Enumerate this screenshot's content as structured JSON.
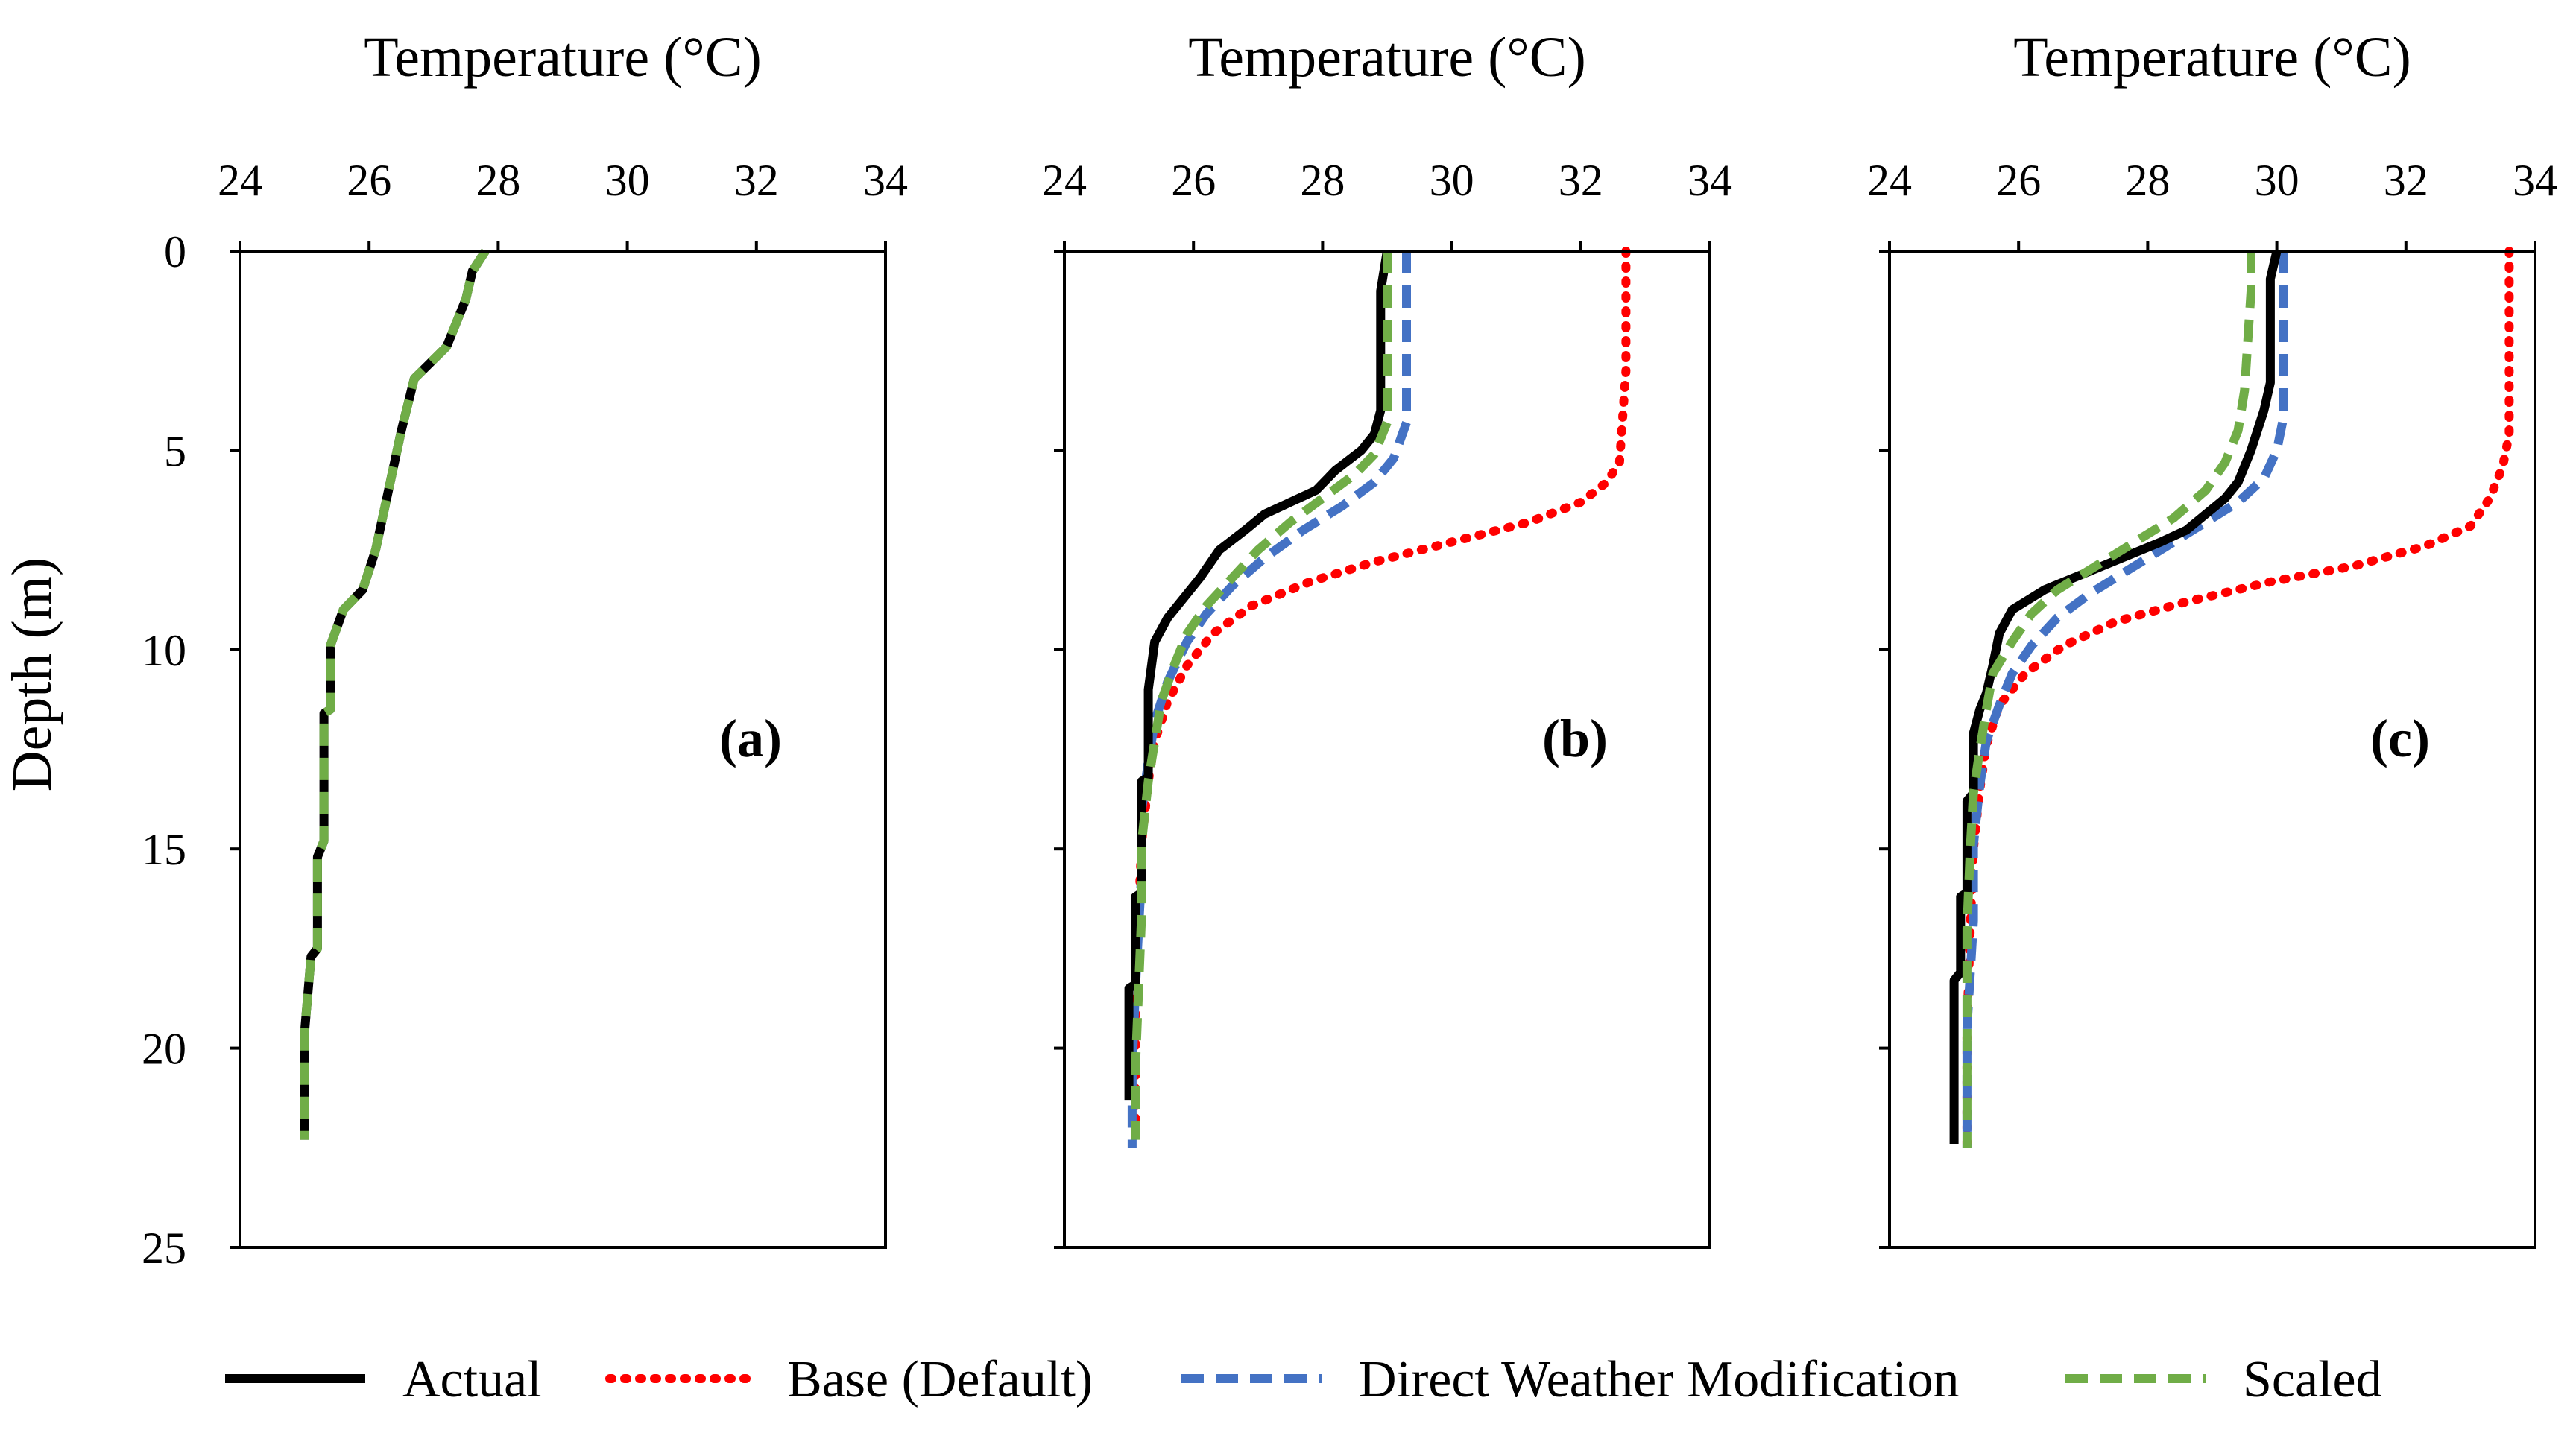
{
  "chart_data": [
    {
      "type": "line",
      "panel_label": "(a)",
      "xlabel": "Temperature (°C)",
      "ylabel": "Depth (m)",
      "xlim": [
        24,
        34
      ],
      "ylim": [
        0,
        25
      ],
      "xticks": [
        "24",
        "26",
        "28",
        "30",
        "32",
        "34"
      ],
      "yticks": [
        "0",
        "5",
        "10",
        "15",
        "20",
        "25"
      ],
      "series": [
        {
          "name": "Actual",
          "x": [
            27.8,
            27.6,
            27.5,
            27.2,
            26.7,
            26.5,
            26.3,
            26.1,
            25.9,
            25.6,
            25.4,
            25.4,
            25.3,
            25.3,
            25.2,
            25.2,
            25.1,
            25.0,
            25.0
          ],
          "y": [
            0,
            0.5,
            1.2,
            2.4,
            3.2,
            4.5,
            6,
            7.5,
            8.5,
            9,
            9.9,
            11.5,
            11.6,
            14.8,
            15.2,
            17.5,
            17.7,
            19.6,
            22.3
          ]
        },
        {
          "name": "Scaled",
          "x": [
            27.8,
            27.6,
            27.5,
            27.2,
            26.7,
            26.5,
            26.3,
            26.1,
            25.9,
            25.6,
            25.4,
            25.4,
            25.3,
            25.3,
            25.2,
            25.2,
            25.1,
            25.0,
            25.0
          ],
          "y": [
            0,
            0.5,
            1.2,
            2.4,
            3.2,
            4.5,
            6,
            7.5,
            8.5,
            9,
            9.9,
            11.5,
            11.6,
            14.8,
            15.2,
            17.5,
            17.7,
            19.6,
            22.3
          ]
        }
      ]
    },
    {
      "type": "line",
      "panel_label": "(b)",
      "xlabel": "Temperature (°C)",
      "ylabel": "",
      "xlim": [
        24,
        34
      ],
      "ylim": [
        0,
        25
      ],
      "xticks": [
        "24",
        "26",
        "28",
        "30",
        "32",
        "34"
      ],
      "yticks": [
        "0",
        "5",
        "10",
        "15",
        "20",
        "25"
      ],
      "series": [
        {
          "name": "Actual",
          "x": [
            29.0,
            28.9,
            28.9,
            28.8,
            28.6,
            28.2,
            27.9,
            27.5,
            27.1,
            26.8,
            26.4,
            26.1,
            25.8,
            25.6,
            25.4,
            25.3,
            25.3,
            25.2,
            25.2,
            25.1,
            25.1,
            25.0,
            25.0
          ],
          "y": [
            0,
            1,
            4,
            4.6,
            5,
            5.5,
            6,
            6.3,
            6.6,
            7,
            7.5,
            8.2,
            8.8,
            9.2,
            9.8,
            11,
            13.2,
            13.3,
            16.1,
            16.2,
            18.4,
            18.5,
            21.3
          ]
        },
        {
          "name": "Base (Default)",
          "x": [
            32.7,
            32.7,
            32.6,
            32.4,
            32.0,
            31.2,
            30.0,
            28.8,
            27.8,
            26.9,
            26.3,
            25.9,
            25.6,
            25.4,
            25.3,
            25.2,
            25.15,
            25.1,
            25.1,
            25.1
          ],
          "y": [
            0,
            3,
            5.3,
            5.8,
            6.3,
            6.8,
            7.3,
            7.8,
            8.3,
            8.9,
            9.6,
            10.4,
            11.3,
            12.3,
            13.3,
            14.8,
            16.5,
            18,
            20.5,
            22.3
          ]
        },
        {
          "name": "Direct Weather Modification",
          "x": [
            29.3,
            29.3,
            29.3,
            29.1,
            28.8,
            28.3,
            27.7,
            27.1,
            26.6,
            26.2,
            25.9,
            25.6,
            25.4,
            25.3,
            25.2,
            25.2,
            25.15,
            25.1,
            25.05,
            25.05
          ],
          "y": [
            0,
            1,
            4.3,
            5.2,
            5.8,
            6.4,
            7,
            7.7,
            8.4,
            9.1,
            9.8,
            10.8,
            11.8,
            12.8,
            14,
            15.5,
            17,
            18.5,
            20.5,
            22.5
          ]
        },
        {
          "name": "Scaled",
          "x": [
            29.0,
            29.0,
            29.0,
            28.8,
            28.5,
            28.0,
            27.5,
            27.0,
            26.6,
            26.2,
            25.9,
            25.7,
            25.5,
            25.4,
            25.3,
            25.2,
            25.2,
            25.15,
            25.1,
            25.1
          ],
          "y": [
            0,
            1,
            4.3,
            5.1,
            5.6,
            6.2,
            6.8,
            7.5,
            8.2,
            8.9,
            9.6,
            10.4,
            11.3,
            12.3,
            13.3,
            14.8,
            16.5,
            18.5,
            20.5,
            22.3
          ]
        }
      ]
    },
    {
      "type": "line",
      "panel_label": "(c)",
      "xlabel": "Temperature (°C)",
      "ylabel": "",
      "xlim": [
        24,
        34
      ],
      "ylim": [
        0,
        25
      ],
      "xticks": [
        "24",
        "26",
        "28",
        "30",
        "32",
        "34"
      ],
      "yticks": [
        "0",
        "5",
        "10",
        "15",
        "20",
        "25"
      ],
      "series": [
        {
          "name": "Actual",
          "x": [
            30.0,
            29.9,
            29.9,
            29.8,
            29.6,
            29.4,
            29.2,
            28.9,
            28.6,
            28.2,
            27.6,
            27.0,
            26.4,
            25.9,
            25.7,
            25.6,
            25.5,
            25.4,
            25.3,
            25.3,
            25.2,
            25.2,
            25.1,
            25.1,
            25.0,
            25.0
          ],
          "y": [
            0,
            0.7,
            3.3,
            4,
            5,
            5.8,
            6.2,
            6.6,
            7,
            7.3,
            7.7,
            8.1,
            8.5,
            9,
            9.6,
            10.4,
            11.1,
            11.5,
            12.1,
            13.6,
            13.8,
            16.1,
            16.2,
            18.1,
            18.3,
            22.4
          ]
        },
        {
          "name": "Base (Default)",
          "x": [
            33.6,
            33.6,
            33.6,
            33.5,
            33.3,
            33.0,
            32.3,
            31.2,
            29.9,
            28.6,
            27.5,
            26.7,
            26.1,
            25.7,
            25.5,
            25.4,
            25.3,
            25.25,
            25.2,
            25.2
          ],
          "y": [
            0,
            3,
            4.6,
            5.4,
            6.2,
            6.9,
            7.4,
            7.9,
            8.3,
            8.8,
            9.3,
            9.9,
            10.6,
            11.4,
            12.4,
            13.5,
            15,
            17,
            19.5,
            22.5
          ]
        },
        {
          "name": "Direct Weather Modification",
          "x": [
            30.1,
            30.1,
            30.1,
            30.0,
            29.8,
            29.4,
            28.9,
            28.3,
            27.7,
            27.1,
            26.6,
            26.2,
            25.9,
            25.7,
            25.5,
            25.4,
            25.3,
            25.3,
            25.2,
            25.2
          ],
          "y": [
            0,
            1,
            4.2,
            5,
            5.7,
            6.3,
            6.8,
            7.4,
            8,
            8.6,
            9.2,
            9.9,
            10.6,
            11.4,
            12.3,
            13.4,
            14.9,
            16.8,
            19.5,
            22.5
          ]
        },
        {
          "name": "Scaled",
          "x": [
            29.6,
            29.6,
            29.5,
            29.4,
            29.2,
            28.9,
            28.4,
            27.8,
            27.2,
            26.6,
            26.2,
            25.9,
            25.6,
            25.5,
            25.4,
            25.3,
            25.25,
            25.2,
            25.2,
            25.2
          ],
          "y": [
            0,
            1,
            3.5,
            4.5,
            5.3,
            6,
            6.7,
            7.3,
            7.9,
            8.5,
            9.1,
            9.8,
            10.6,
            11.5,
            12.5,
            13.6,
            15,
            17,
            19.5,
            22.5
          ]
        }
      ]
    }
  ],
  "legend": {
    "placement": "bottom",
    "entries": [
      {
        "name": "Actual",
        "color": "#000000",
        "style": "solid"
      },
      {
        "name": "Base (Default)",
        "color": "#ff0000",
        "style": "dotted"
      },
      {
        "name": "Direct Weather Modification",
        "color": "#4472c4",
        "style": "dashed"
      },
      {
        "name": "Scaled",
        "color": "#70ad47",
        "style": "dashed"
      }
    ]
  }
}
